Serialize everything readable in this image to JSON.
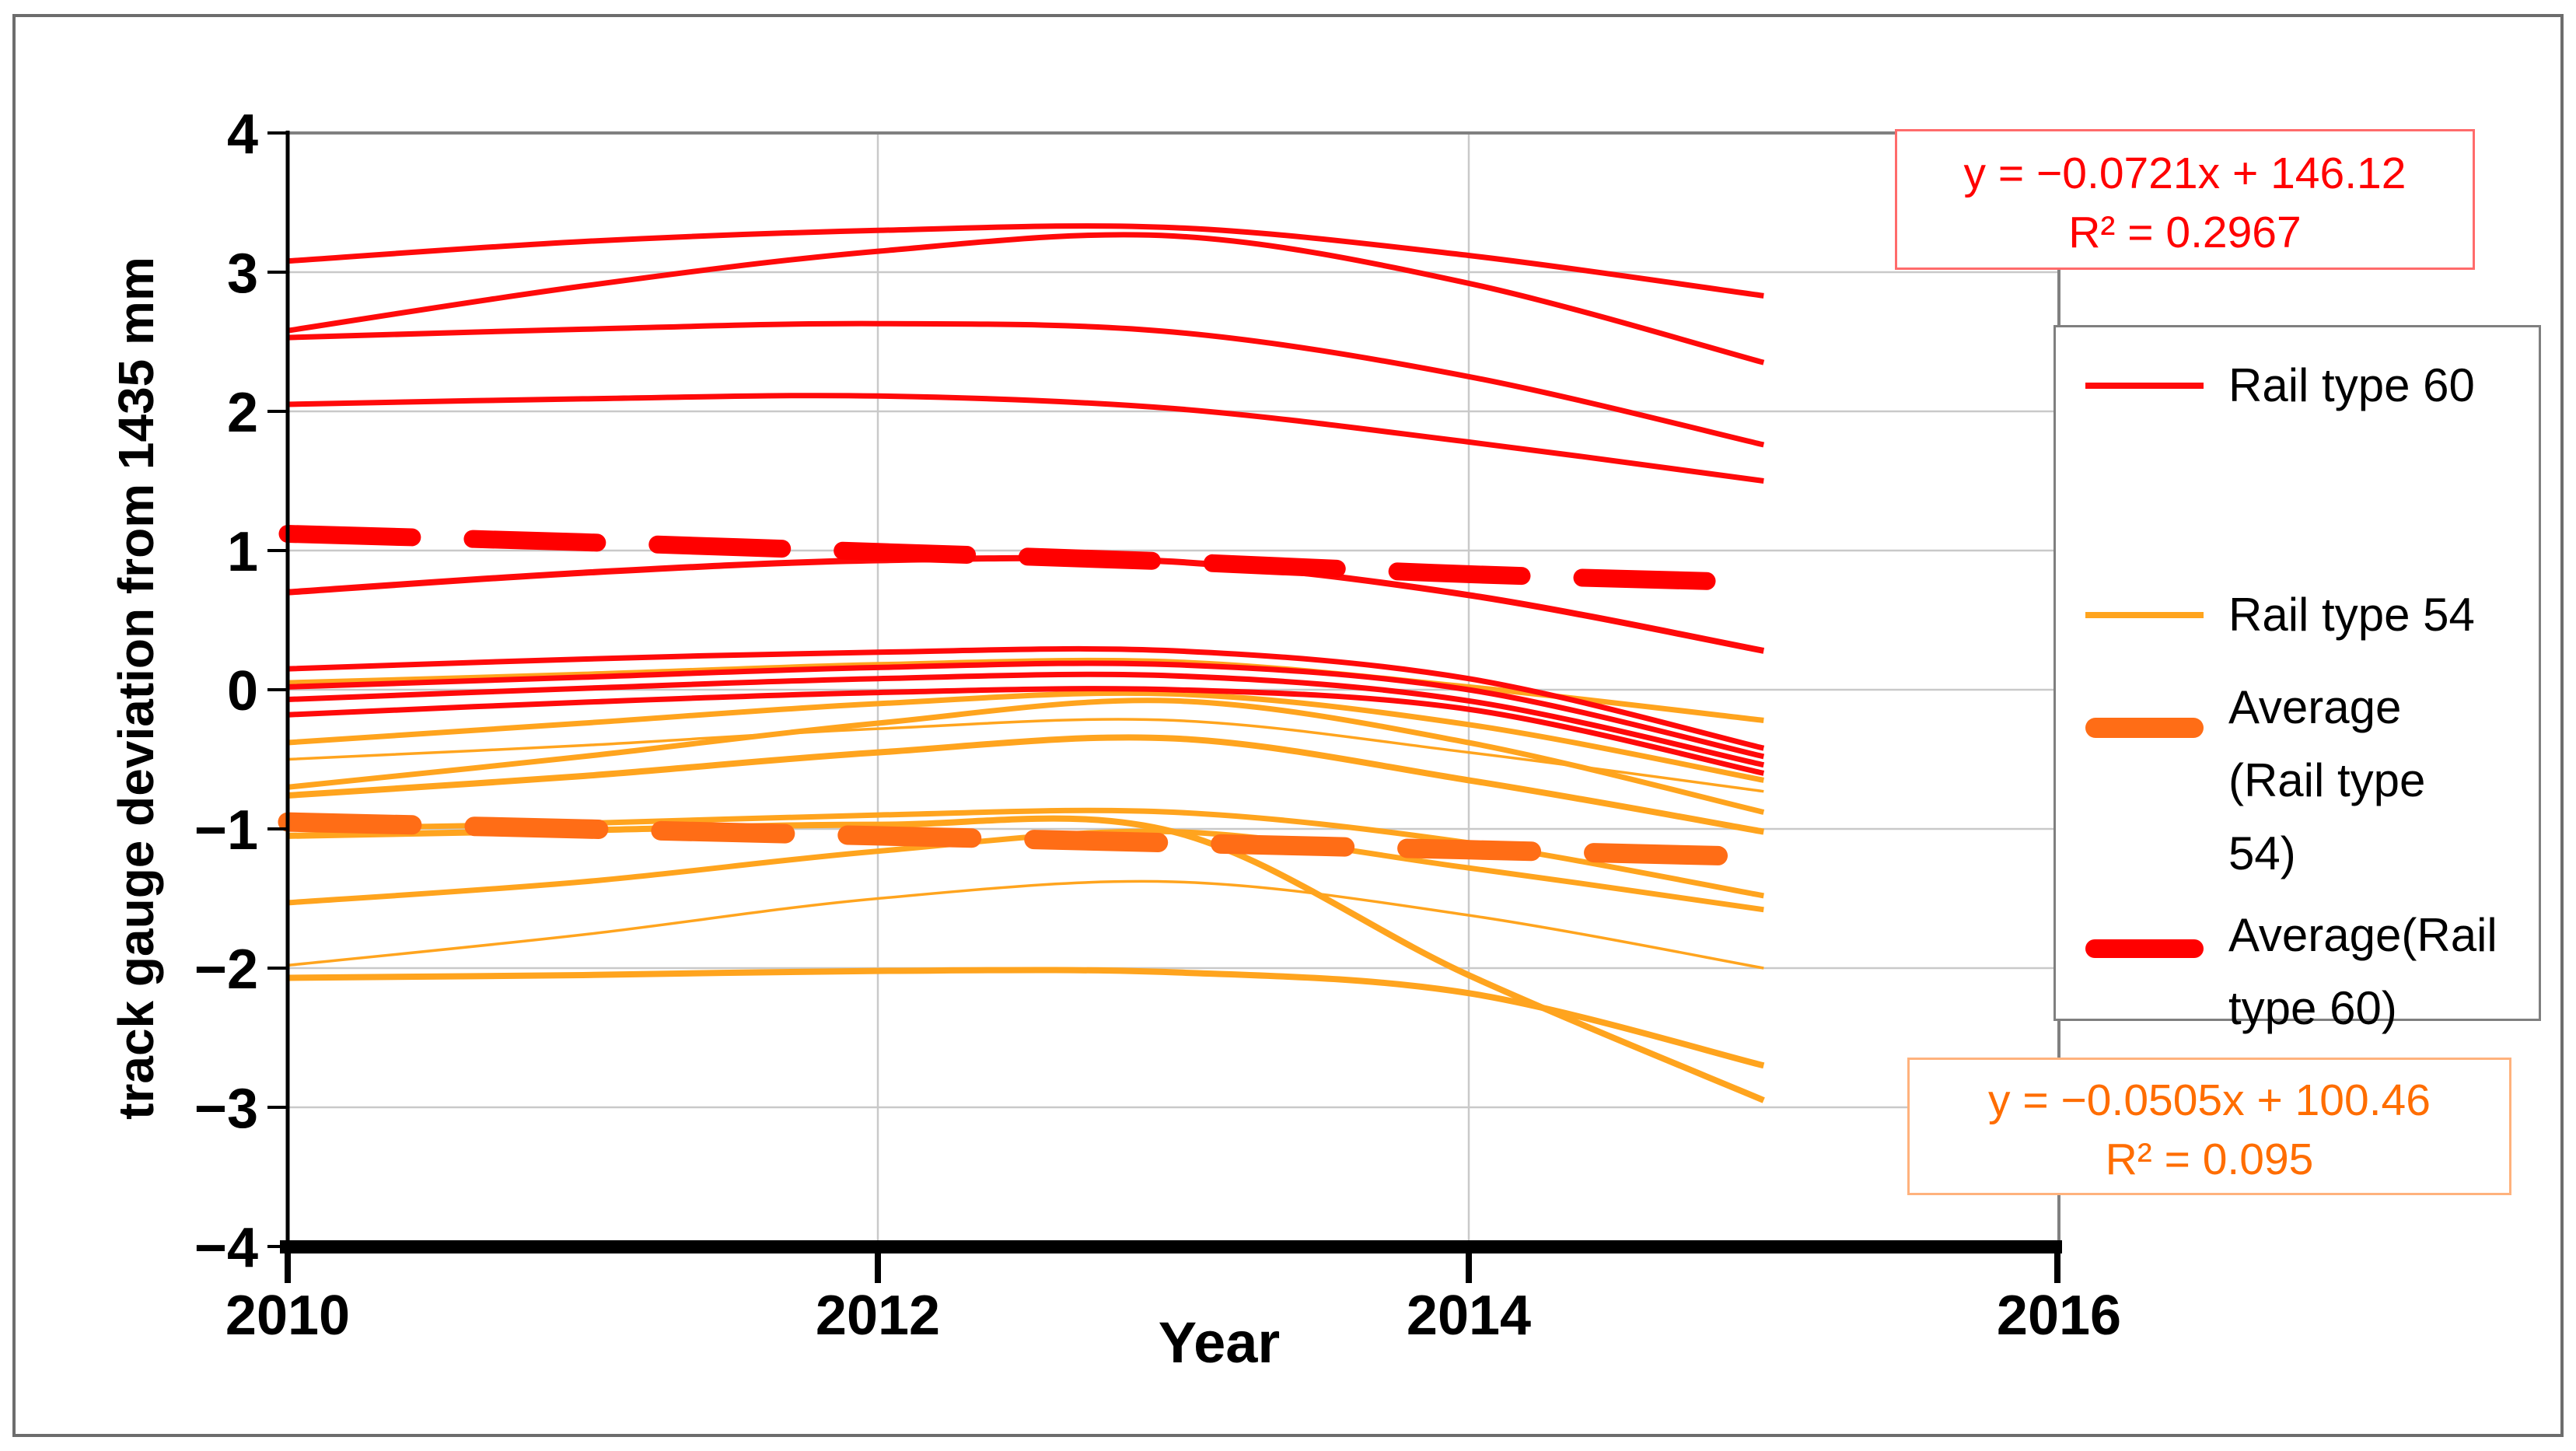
{
  "figure": {
    "background": "#FFFFFF",
    "border_color": "#6D6D6D",
    "accent_red": "#FF0000",
    "accent_orange": "#FFA41E",
    "accent_orange_dark": "#FF6D16"
  },
  "axes": {
    "y": {
      "title": "track gauge deviation from 1435 mm",
      "min": -4,
      "max": 4,
      "step": 1,
      "tick_labels": [
        "4",
        "3",
        "2",
        "1",
        "0",
        "−1",
        "−2",
        "−3",
        "−4"
      ]
    },
    "x": {
      "title": "Year",
      "min": 2010,
      "max": 2016,
      "tick_labels": [
        "2010",
        "2012",
        "2014",
        "2016"
      ]
    }
  },
  "legend": {
    "items": [
      {
        "label": "Rail type 60",
        "lines": [
          "Rail type 60"
        ],
        "swatch": "line",
        "color": "#FF0A0A"
      },
      {
        "label": "Rail type 54",
        "lines": [
          "Rail type 54"
        ],
        "swatch": "line",
        "color": "#FFA41E"
      },
      {
        "label": "Average (Rail type 54)",
        "lines": [
          "Average",
          "(Rail type",
          "54)"
        ],
        "swatch": "dash",
        "color": "#FF6D16"
      },
      {
        "label": "Average(Rail type 60)",
        "lines": [
          "Average(Rail",
          "type 60)"
        ],
        "swatch": "dash",
        "color": "#FF0000"
      }
    ]
  },
  "annotations": {
    "eq60": {
      "line1": "y = −0.0721x + 146.12",
      "line2": "R² = 0.2967",
      "color": "#FF0000"
    },
    "eq54": {
      "line1": "y = −0.0505x + 100.46",
      "line2": "R² = 0.095",
      "color": "#FF6D00"
    }
  },
  "chart_data": {
    "type": "line",
    "title": "",
    "xlabel": "Year",
    "ylabel": "track gauge deviation from 1435 mm",
    "x": [
      2010,
      2011,
      2012,
      2013,
      2014,
      2015
    ],
    "xlim": [
      2010,
      2016
    ],
    "ylim": [
      -4,
      4
    ],
    "grid": true,
    "legend_position": "right",
    "series": [
      {
        "name": "rail-54-line-1",
        "group": "Rail type 54",
        "color": "#FFA41E",
        "width": 7,
        "values": [
          0.05,
          0.11,
          0.18,
          0.2,
          0.02,
          -0.22
        ]
      },
      {
        "name": "rail-54-line-2",
        "group": "Rail type 54",
        "color": "#FFA41E",
        "width": 7,
        "values": [
          -0.38,
          -0.24,
          -0.1,
          -0.03,
          -0.25,
          -0.65
        ]
      },
      {
        "name": "rail-54-line-3",
        "group": "Rail type 54",
        "color": "#FFA41E",
        "width": 3.5,
        "values": [
          -0.5,
          -0.4,
          -0.28,
          -0.22,
          -0.45,
          -0.73
        ]
      },
      {
        "name": "rail-54-line-4",
        "group": "Rail type 54",
        "color": "#FFA41E",
        "width": 7,
        "values": [
          -0.7,
          -0.48,
          -0.24,
          -0.08,
          -0.38,
          -0.88
        ]
      },
      {
        "name": "rail-54-line-5",
        "group": "Rail type 54",
        "color": "#FFA41E",
        "width": 8,
        "values": [
          -0.76,
          -0.62,
          -0.45,
          -0.35,
          -0.65,
          -1.02
        ]
      },
      {
        "name": "rail-54-line-6",
        "group": "Rail type 54",
        "color": "#FFA41E",
        "width": 7,
        "values": [
          -1.0,
          -0.96,
          -0.9,
          -0.88,
          -1.1,
          -1.48
        ]
      },
      {
        "name": "rail-54-line-7",
        "group": "Rail type 54",
        "color": "#FFA41E",
        "width": 8,
        "values": [
          -1.05,
          -1.01,
          -0.97,
          -1.02,
          -2.05,
          -2.95
        ]
      },
      {
        "name": "rail-54-line-8",
        "group": "Rail type 54",
        "color": "#FFA41E",
        "width": 7,
        "values": [
          -1.53,
          -1.38,
          -1.16,
          -1.02,
          -1.28,
          -1.58
        ]
      },
      {
        "name": "rail-54-line-9",
        "group": "Rail type 54",
        "color": "#FFA41E",
        "width": 3.5,
        "values": [
          -1.98,
          -1.76,
          -1.5,
          -1.38,
          -1.62,
          -2.0
        ]
      },
      {
        "name": "rail-54-line-10",
        "group": "Rail type 54",
        "color": "#FFA41E",
        "width": 8,
        "values": [
          -2.07,
          -2.05,
          -2.02,
          -2.03,
          -2.18,
          -2.7
        ]
      },
      {
        "name": "rail-60-line-1",
        "group": "Rail type 60",
        "color": "#FF0A0A",
        "width": 7,
        "values": [
          3.08,
          3.22,
          3.3,
          3.32,
          3.12,
          2.83
        ]
      },
      {
        "name": "rail-60-line-2",
        "group": "Rail type 60",
        "color": "#FF0A0A",
        "width": 7,
        "values": [
          2.58,
          2.9,
          3.15,
          3.26,
          2.92,
          2.35
        ]
      },
      {
        "name": "rail-60-line-3",
        "group": "Rail type 60",
        "color": "#FF0A0A",
        "width": 7,
        "values": [
          2.53,
          2.59,
          2.63,
          2.57,
          2.25,
          1.76
        ]
      },
      {
        "name": "rail-60-line-4",
        "group": "Rail type 60",
        "color": "#FF0A0A",
        "width": 7,
        "values": [
          2.05,
          2.09,
          2.11,
          2.02,
          1.78,
          1.5
        ]
      },
      {
        "name": "rail-60-line-5",
        "group": "Rail type 60",
        "color": "#FF0A0A",
        "width": 8,
        "values": [
          0.7,
          0.84,
          0.93,
          0.92,
          0.68,
          0.28
        ]
      },
      {
        "name": "rail-60-line-6",
        "group": "Rail type 60",
        "color": "#FF0A0A",
        "width": 7,
        "values": [
          0.15,
          0.22,
          0.27,
          0.28,
          0.08,
          -0.42
        ]
      },
      {
        "name": "rail-60-line-7",
        "group": "Rail type 60",
        "color": "#FF0A0A",
        "width": 7,
        "values": [
          0.02,
          0.09,
          0.16,
          0.18,
          0.0,
          -0.48
        ]
      },
      {
        "name": "rail-60-line-8",
        "group": "Rail type 60",
        "color": "#FF0A0A",
        "width": 7,
        "values": [
          -0.07,
          0.01,
          0.08,
          0.1,
          -0.08,
          -0.54
        ]
      },
      {
        "name": "rail-60-line-9",
        "group": "Rail type 60",
        "color": "#FF0A0A",
        "width": 7,
        "values": [
          -0.18,
          -0.09,
          -0.02,
          0.0,
          -0.14,
          -0.6
        ]
      },
      {
        "name": "average-rail-type-54",
        "group": "Average (Rail type 54)",
        "color": "#FF6D16",
        "width": 25,
        "dash": "160 80",
        "values": [
          -0.95,
          -1.0,
          -1.05,
          -1.1,
          -1.15,
          -1.2
        ]
      },
      {
        "name": "average-rail-type-60",
        "group": "Average(Rail type 60)",
        "color": "#FF0000",
        "width": 23,
        "dash": "160 78",
        "values": [
          1.12,
          1.06,
          0.99,
          0.92,
          0.83,
          0.77
        ]
      }
    ],
    "trendline_labels": [
      {
        "applies_to": "Average(Rail type 60)",
        "equation": "y = −0.0721x + 146.12",
        "r_squared": "R² = 0.2967"
      },
      {
        "applies_to": "Average (Rail type 54)",
        "equation": "y = −0.0505x + 100.46",
        "r_squared": "R² = 0.095"
      }
    ]
  }
}
